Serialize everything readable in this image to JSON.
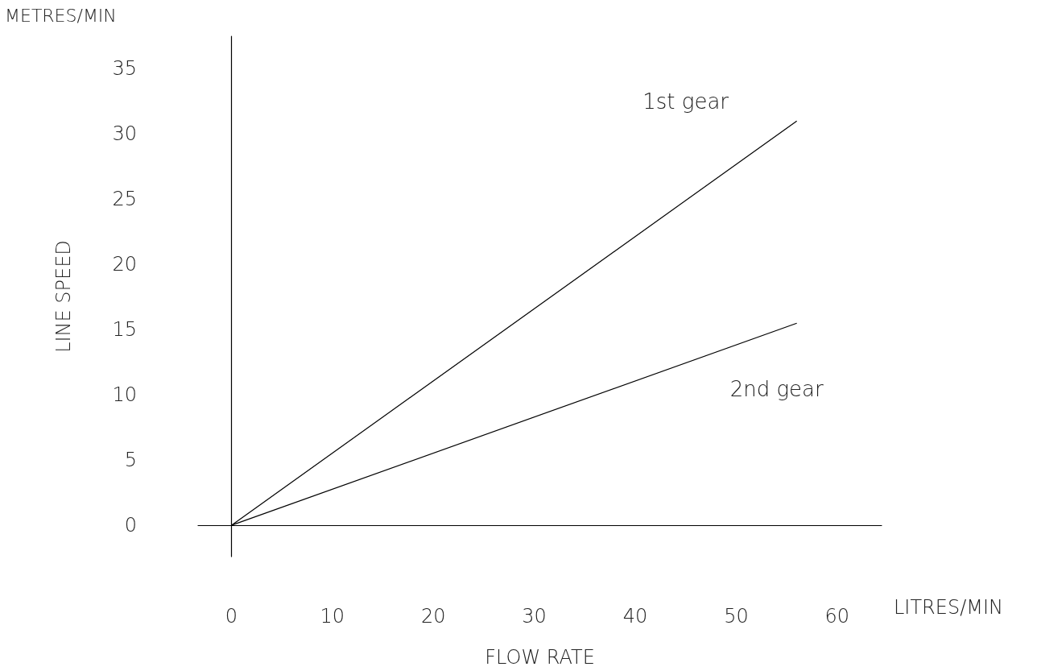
{
  "chart_data": {
    "type": "line",
    "xlabel": "FLOW RATE",
    "ylabel": "LINE SPEED",
    "annotations": [
      "METRES/MIN",
      "LITRES/MIN"
    ],
    "marker": "none",
    "xlim": [
      -3.3,
      64.4
    ],
    "ylim": [
      -2.4,
      37.5
    ],
    "xticks": [
      0,
      10,
      20,
      30,
      40,
      50,
      60
    ],
    "yticks": [
      0,
      5,
      10,
      15,
      20,
      25,
      30,
      35
    ],
    "x": [
      0,
      56
    ],
    "series": [
      {
        "name": "1st gear",
        "color": "#000000",
        "values": [
          0,
          31
        ]
      },
      {
        "name": "2nd gear",
        "color": "#000000",
        "values": [
          0,
          15.5
        ]
      }
    ]
  }
}
